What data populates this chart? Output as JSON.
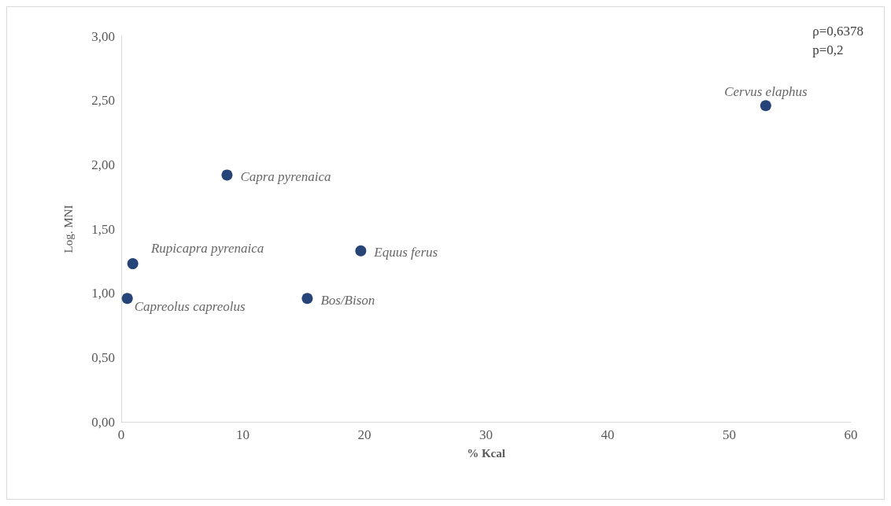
{
  "chart_data": {
    "type": "scatter",
    "xlabel": "% Kcal",
    "ylabel": "Log. MNI",
    "x": [
      53.0,
      8.7,
      0.95,
      0.5,
      15.3,
      19.7
    ],
    "values": [
      2.46,
      1.92,
      1.23,
      0.96,
      0.96,
      1.33
    ],
    "color": "#264478",
    "marker": "circle",
    "xlim": [
      0,
      60
    ],
    "xticks": [
      0,
      10,
      20,
      30,
      40,
      50,
      60
    ],
    "ylim": [
      0,
      3
    ],
    "yticks": [
      {
        "value": 0,
        "label": "0,00"
      },
      {
        "value": 0.5,
        "label": "0,50"
      },
      {
        "value": 1,
        "label": "1,00"
      },
      {
        "value": 1.5,
        "label": "1,50"
      },
      {
        "value": 2,
        "label": "2,00"
      },
      {
        "value": 2.5,
        "label": "2,50"
      },
      {
        "value": 3,
        "label": "3,00"
      }
    ],
    "grid": false,
    "annotations": [
      {
        "text": "Cervus elaphus",
        "x": 53.0,
        "y": 2.46
      },
      {
        "text": "Capra pyrenaica",
        "x": 8.7,
        "y": 1.92
      },
      {
        "text": "Rupicapra pyrenaica",
        "x": 0.95,
        "y": 1.23
      },
      {
        "text": "Capreolus capreolus",
        "x": 0.5,
        "y": 0.96
      },
      {
        "text": "Bos/Bison",
        "x": 15.3,
        "y": 0.96
      },
      {
        "text": "Equus ferus",
        "x": 19.7,
        "y": 1.33
      },
      "ρ=0,6378\np=0,2"
    ]
  }
}
